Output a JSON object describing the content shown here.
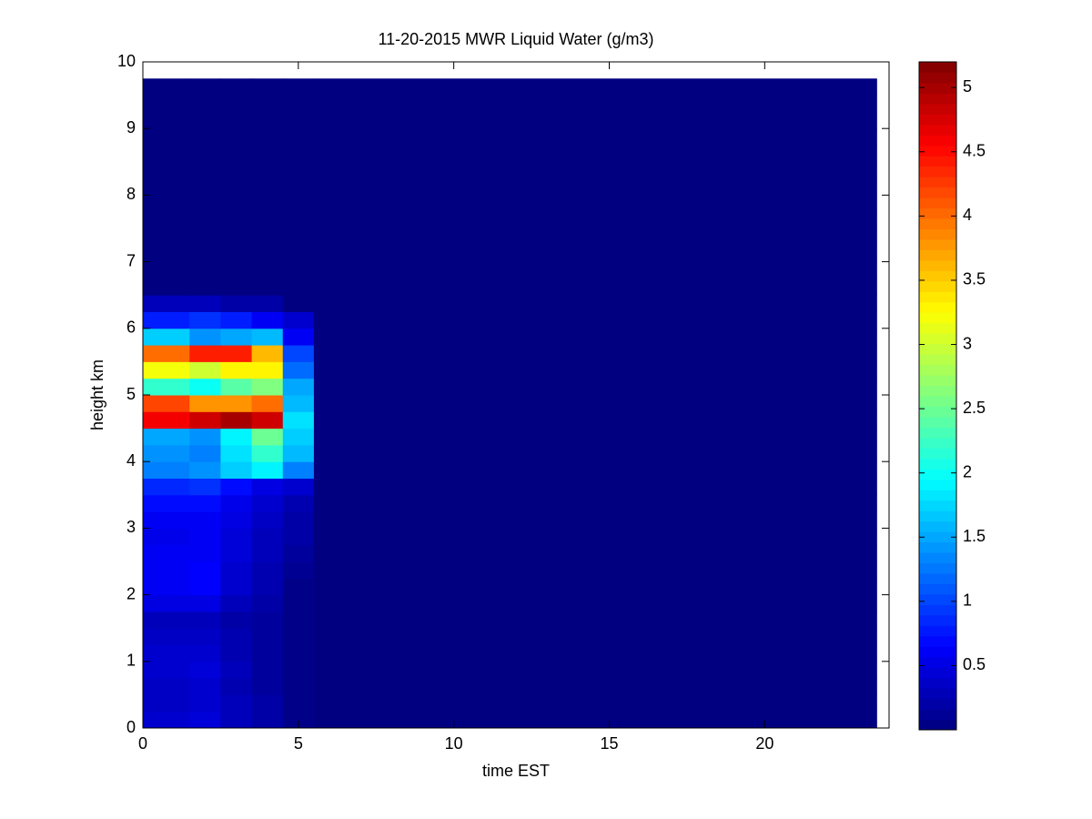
{
  "chart_data": {
    "type": "heatmap",
    "title": "11-20-2015 MWR Liquid Water (g/m3)",
    "xlabel": "time EST",
    "ylabel": "height km",
    "xlim": [
      0,
      24
    ],
    "xticks": [
      0,
      5,
      10,
      15,
      20
    ],
    "ylim": [
      0,
      10
    ],
    "yticks": [
      0,
      1,
      2,
      3,
      4,
      5,
      6,
      7,
      8,
      9,
      10
    ],
    "x_edges": [
      0,
      1.5,
      2.5,
      3.5,
      4.5,
      5.5,
      23.6
    ],
    "y_edges": [
      0,
      0.25,
      0.5,
      0.75,
      1,
      1.25,
      1.5,
      1.75,
      2,
      2.25,
      2.5,
      2.75,
      3,
      3.25,
      3.5,
      3.75,
      4,
      4.25,
      4.5,
      4.75,
      5,
      5.25,
      5.5,
      5.75,
      6,
      6.25,
      6.5,
      6.75,
      7,
      7.25,
      7.5,
      7.75,
      8,
      8.25,
      8.5,
      8.75,
      9,
      9.25,
      9.5,
      9.75
    ],
    "values": [
      [
        0.4,
        0.45,
        0.3,
        0.2,
        0.05,
        0
      ],
      [
        0.35,
        0.4,
        0.3,
        0.2,
        0.05,
        0
      ],
      [
        0.35,
        0.4,
        0.25,
        0.15,
        0.05,
        0
      ],
      [
        0.4,
        0.45,
        0.3,
        0.15,
        0.05,
        0
      ],
      [
        0.4,
        0.4,
        0.25,
        0.15,
        0.05,
        0
      ],
      [
        0.35,
        0.35,
        0.25,
        0.15,
        0.05,
        0
      ],
      [
        0.3,
        0.3,
        0.2,
        0.15,
        0.05,
        0
      ],
      [
        0.5,
        0.5,
        0.3,
        0.2,
        0.05,
        0
      ],
      [
        0.6,
        0.65,
        0.4,
        0.25,
        0.05,
        0
      ],
      [
        0.6,
        0.65,
        0.4,
        0.25,
        0.1,
        0
      ],
      [
        0.6,
        0.6,
        0.45,
        0.3,
        0.15,
        0
      ],
      [
        0.55,
        0.6,
        0.45,
        0.3,
        0.2,
        0
      ],
      [
        0.6,
        0.6,
        0.5,
        0.35,
        0.2,
        0
      ],
      [
        0.7,
        0.7,
        0.55,
        0.4,
        0.25,
        0
      ],
      [
        0.85,
        0.9,
        0.7,
        0.5,
        0.4,
        0
      ],
      [
        1.3,
        1.4,
        1.7,
        1.9,
        1.3,
        0
      ],
      [
        1.4,
        1.3,
        1.8,
        2.2,
        1.6,
        0
      ],
      [
        1.5,
        1.4,
        1.9,
        2.5,
        1.7,
        0
      ],
      [
        4.6,
        4.8,
        5.0,
        4.8,
        1.8,
        0
      ],
      [
        4.2,
        3.8,
        3.8,
        4.0,
        1.6,
        0
      ],
      [
        2.2,
        2.0,
        2.4,
        2.6,
        1.5,
        0
      ],
      [
        3.2,
        3.0,
        3.3,
        3.3,
        1.2,
        0
      ],
      [
        4.0,
        4.4,
        4.4,
        3.6,
        1.0,
        0
      ],
      [
        1.7,
        1.4,
        1.5,
        1.6,
        0.6,
        0
      ],
      [
        0.8,
        0.9,
        0.8,
        0.6,
        0.4,
        0
      ],
      [
        0.3,
        0.3,
        0.2,
        0.2,
        0,
        0
      ],
      [
        0,
        0,
        0,
        0,
        0,
        0
      ],
      [
        0,
        0,
        0,
        0,
        0,
        0
      ],
      [
        0,
        0,
        0,
        0,
        0,
        0
      ],
      [
        0,
        0,
        0,
        0,
        0,
        0
      ],
      [
        0,
        0,
        0,
        0,
        0,
        0
      ],
      [
        0,
        0,
        0,
        0,
        0,
        0
      ],
      [
        0,
        0,
        0,
        0,
        0,
        0
      ],
      [
        0,
        0,
        0,
        0,
        0,
        0
      ],
      [
        0,
        0,
        0,
        0,
        0,
        0
      ],
      [
        0,
        0,
        0,
        0,
        0,
        0
      ],
      [
        0,
        0,
        0,
        0,
        0,
        0
      ],
      [
        0,
        0,
        0,
        0,
        0,
        0
      ],
      [
        0,
        0,
        0,
        0,
        0,
        0
      ]
    ],
    "colormap": "jet",
    "colorbar": {
      "lim": [
        0,
        5.2
      ],
      "ticks": [
        0.5,
        1,
        1.5,
        2,
        2.5,
        3,
        3.5,
        4,
        4.5,
        5
      ]
    }
  }
}
